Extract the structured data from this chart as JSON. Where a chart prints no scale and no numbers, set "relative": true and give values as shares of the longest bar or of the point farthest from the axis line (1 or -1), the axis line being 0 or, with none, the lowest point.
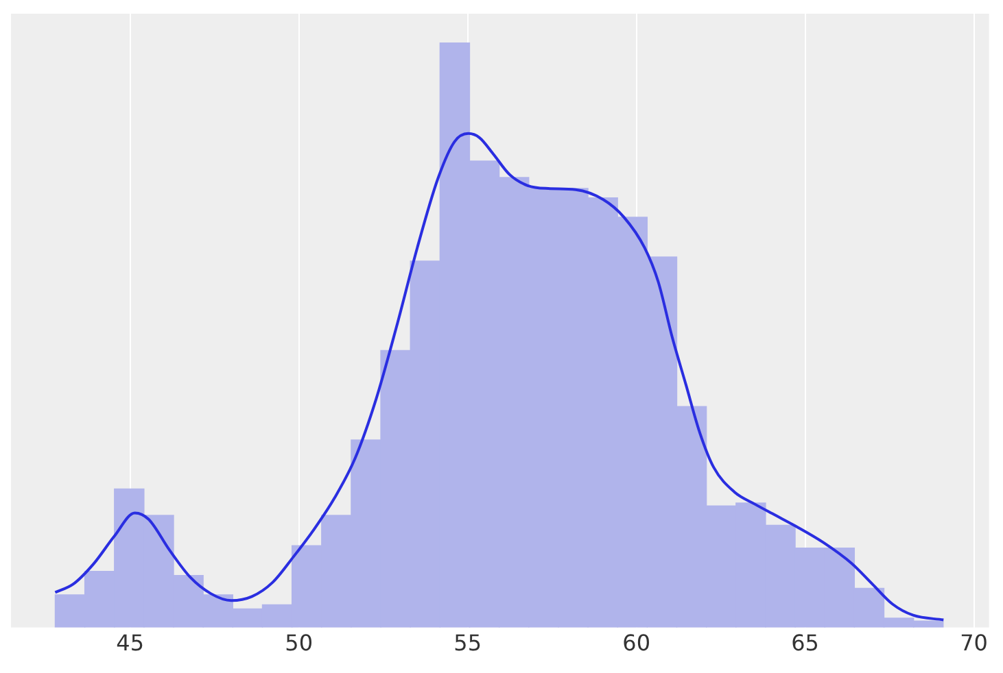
{
  "chart_data": {
    "type": "histogram",
    "relative": true,
    "grid": "x",
    "xlim": [
      41.47,
      70.45
    ],
    "xticks": [
      45,
      50,
      55,
      60,
      65,
      70
    ],
    "series": [
      {
        "color": "#b0b4eb",
        "bins": [
          42.78,
          43.657,
          44.534,
          45.411,
          46.288,
          47.165,
          48.042,
          48.919,
          49.796,
          50.673,
          51.55,
          52.427,
          53.304,
          54.181,
          55.058,
          55.935,
          56.812,
          57.689,
          58.566,
          59.443,
          60.32,
          61.197,
          62.074,
          62.951,
          63.828,
          64.705,
          65.582,
          66.459,
          67.336,
          68.213,
          69.09
        ],
        "values": [
          0.056,
          0.096,
          0.237,
          0.192,
          0.089,
          0.056,
          0.032,
          0.039,
          0.14,
          0.192,
          0.321,
          0.474,
          0.627,
          1.0,
          0.798,
          0.77,
          0.751,
          0.751,
          0.735,
          0.702,
          0.634,
          0.378,
          0.208,
          0.213,
          0.175,
          0.136,
          0.136,
          0.067,
          0.016,
          0.011
        ]
      },
      {
        "type": "line",
        "color": "#2a2ee0",
        "x": [
          42.78,
          43.31,
          43.92,
          44.53,
          45.14,
          45.55,
          46.16,
          46.78,
          47.39,
          48.0,
          48.61,
          49.22,
          49.84,
          50.45,
          51.06,
          51.67,
          52.29,
          52.9,
          53.51,
          54.12,
          54.61,
          55.02,
          55.35,
          55.76,
          56.24,
          56.78,
          57.39,
          58.2,
          59.02,
          59.63,
          60.24,
          60.65,
          61.06,
          61.47,
          61.88,
          62.29,
          62.9,
          63.51,
          64.12,
          64.73,
          65.55,
          66.37,
          66.98,
          67.59,
          68.2,
          69.1
        ],
        "values": [
          0.06,
          0.074,
          0.109,
          0.156,
          0.196,
          0.185,
          0.133,
          0.086,
          0.058,
          0.046,
          0.053,
          0.077,
          0.121,
          0.168,
          0.222,
          0.29,
          0.391,
          0.516,
          0.65,
          0.768,
          0.831,
          0.845,
          0.838,
          0.81,
          0.775,
          0.756,
          0.751,
          0.749,
          0.732,
          0.702,
          0.65,
          0.591,
          0.497,
          0.415,
          0.333,
          0.274,
          0.232,
          0.211,
          0.192,
          0.173,
          0.145,
          0.11,
          0.075,
          0.04,
          0.021,
          0.013
        ]
      }
    ]
  }
}
